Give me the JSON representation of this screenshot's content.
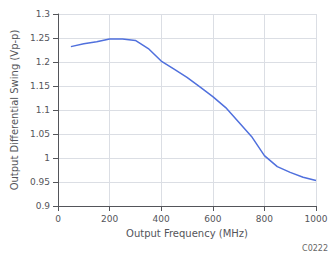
{
  "chart_data": {
    "type": "line",
    "x": [
      50,
      100,
      150,
      200,
      250,
      300,
      350,
      400,
      450,
      500,
      550,
      600,
      650,
      700,
      750,
      800,
      850,
      900,
      950,
      1000
    ],
    "values": [
      1.232,
      1.238,
      1.242,
      1.248,
      1.248,
      1.245,
      1.228,
      1.202,
      1.185,
      1.168,
      1.148,
      1.128,
      1.105,
      1.075,
      1.045,
      1.005,
      0.982,
      0.97,
      0.96,
      0.953
    ],
    "xlabel": "Output Frequency (MHz)",
    "ylabel": "Output Differential Swing (Vp-p)",
    "xlim": [
      0,
      1000
    ],
    "ylim": [
      0.9,
      1.3
    ],
    "xticks": [
      0,
      200,
      400,
      600,
      800,
      1000
    ],
    "yticks": [
      0.9,
      0.95,
      1.0,
      1.05,
      1.1,
      1.15,
      1.2,
      1.25,
      1.3
    ],
    "grid": true,
    "annotations": [
      "C0222"
    ]
  }
}
